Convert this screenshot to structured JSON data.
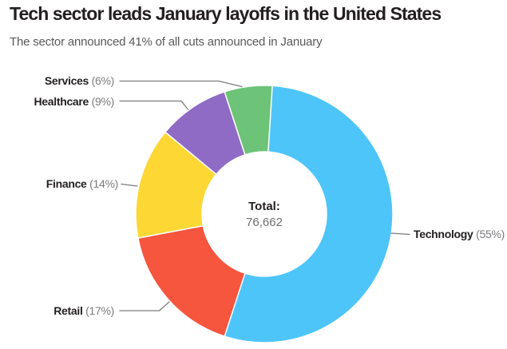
{
  "chart_data": {
    "type": "pie",
    "variant": "donut",
    "title": "Tech sector leads January layoffs in the United States",
    "subtitle": "The sector announced 41% of all cuts announced in January",
    "total_label": "Total:",
    "total_value": "76,662",
    "total_numeric": 76662,
    "start_angle": "12 o'clock, clockwise",
    "legend_position": "callout labels with leader lines",
    "slices": [
      {
        "label": "Technology",
        "pct": 55,
        "pct_label": "(55%)",
        "color": "#4ec5f9"
      },
      {
        "label": "Retail",
        "pct": 17,
        "pct_label": "(17%)",
        "color": "#f6553e"
      },
      {
        "label": "Finance",
        "pct": 14,
        "pct_label": "(14%)",
        "color": "#fdd733"
      },
      {
        "label": "Healthcare",
        "pct": 9,
        "pct_label": "(9%)",
        "color": "#8f6bc6"
      },
      {
        "label": "Services",
        "pct": 6,
        "pct_label": "(6%)",
        "color": "#6dc377"
      }
    ]
  }
}
